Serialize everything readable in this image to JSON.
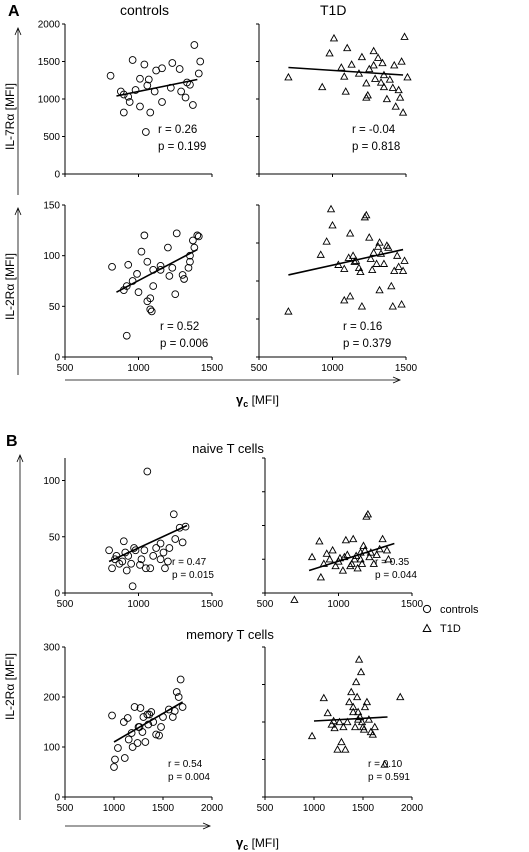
{
  "figure": {
    "panel_a_letter": "A",
    "panel_b_letter": "B",
    "col_controls": "controls",
    "col_t1d": "T1D",
    "gamma_symbol": "γ",
    "gamma_sub": "c",
    "gamma_unit": " [MFI]",
    "il7_label": "IL-7Rα [MFI]",
    "il2_label": "IL-2Rα [MFI]",
    "naive_title": "naive T cells",
    "memory_title": "memory T cells",
    "legend_controls": "controls",
    "legend_t1d": "T1D"
  },
  "chart_data": [
    {
      "id": "A-il7-controls",
      "type": "scatter",
      "marker": "circle",
      "xlim": [
        500,
        1500
      ],
      "ylim": [
        0,
        2000
      ],
      "yticks": [
        "0",
        "500",
        "1000",
        "1500",
        "2000"
      ],
      "stats": {
        "r": "r = 0.26",
        "p": "p =  0.199"
      },
      "fit": [
        [
          850,
          1040
        ],
        [
          1400,
          1260
        ]
      ],
      "points": [
        [
          810,
          1310
        ],
        [
          880,
          1100
        ],
        [
          900,
          1060
        ],
        [
          960,
          1520
        ],
        [
          1040,
          1460
        ],
        [
          1120,
          1380
        ],
        [
          940,
          960
        ],
        [
          900,
          820
        ],
        [
          930,
          1030
        ],
        [
          1010,
          900
        ],
        [
          1060,
          1180
        ],
        [
          1160,
          1410
        ],
        [
          1230,
          1480
        ],
        [
          1280,
          1400
        ],
        [
          1330,
          1220
        ],
        [
          1320,
          1020
        ],
        [
          1350,
          1190
        ],
        [
          1370,
          920
        ],
        [
          1380,
          1720
        ],
        [
          1410,
          1340
        ],
        [
          1420,
          1500
        ],
        [
          1010,
          1270
        ],
        [
          980,
          1120
        ],
        [
          1070,
          1260
        ],
        [
          1220,
          1150
        ],
        [
          1080,
          820
        ],
        [
          1160,
          960
        ],
        [
          1290,
          1100
        ],
        [
          1050,
          560
        ],
        [
          1110,
          1100
        ]
      ]
    },
    {
      "id": "A-il7-t1d",
      "type": "scatter",
      "marker": "triangle",
      "xlim": [
        500,
        1500
      ],
      "ylim": [
        0,
        2000
      ],
      "stats": {
        "r": "r = -0.04",
        "p": "p =  0.818"
      },
      "fit": [
        [
          700,
          1420
        ],
        [
          1480,
          1320
        ]
      ],
      "points": [
        [
          700,
          1290
        ],
        [
          930,
          1160
        ],
        [
          980,
          1610
        ],
        [
          1010,
          1810
        ],
        [
          1100,
          1680
        ],
        [
          1060,
          1420
        ],
        [
          1080,
          1300
        ],
        [
          1090,
          1100
        ],
        [
          1180,
          1340
        ],
        [
          1230,
          1210
        ],
        [
          1230,
          1020
        ],
        [
          1240,
          1050
        ],
        [
          1250,
          1400
        ],
        [
          1280,
          1640
        ],
        [
          1280,
          1450
        ],
        [
          1290,
          1270
        ],
        [
          1310,
          1550
        ],
        [
          1330,
          1220
        ],
        [
          1340,
          1480
        ],
        [
          1350,
          1320
        ],
        [
          1370,
          1000
        ],
        [
          1390,
          1260
        ],
        [
          1410,
          1150
        ],
        [
          1420,
          1450
        ],
        [
          1430,
          900
        ],
        [
          1450,
          1120
        ],
        [
          1460,
          1020
        ],
        [
          1470,
          1500
        ],
        [
          1480,
          820
        ],
        [
          1490,
          1830
        ],
        [
          1510,
          1290
        ],
        [
          1350,
          1160
        ],
        [
          1200,
          1560
        ],
        [
          1130,
          1460
        ]
      ]
    },
    {
      "id": "A-il2-controls",
      "type": "scatter",
      "marker": "circle",
      "xlim": [
        500,
        1500
      ],
      "ylim": [
        0,
        150
      ],
      "yticks": [
        "0",
        "50",
        "100",
        "150"
      ],
      "xticks": [
        "500",
        "1000",
        "1500"
      ],
      "stats": {
        "r": "r = 0.52",
        "p": "p =  0.006"
      },
      "fit": [
        [
          850,
          64
        ],
        [
          1400,
          106
        ]
      ],
      "points": [
        [
          820,
          89
        ],
        [
          900,
          66
        ],
        [
          920,
          70
        ],
        [
          930,
          91
        ],
        [
          920,
          21
        ],
        [
          960,
          75
        ],
        [
          990,
          82
        ],
        [
          1020,
          104
        ],
        [
          1040,
          120
        ],
        [
          1060,
          94
        ],
        [
          1000,
          64
        ],
        [
          1060,
          55
        ],
        [
          1080,
          47
        ],
        [
          1080,
          58
        ],
        [
          1100,
          70
        ],
        [
          1100,
          86
        ],
        [
          1150,
          86
        ],
        [
          1150,
          90
        ],
        [
          1200,
          108
        ],
        [
          1250,
          62
        ],
        [
          1230,
          88
        ],
        [
          1260,
          122
        ],
        [
          1300,
          81
        ],
        [
          1310,
          77
        ],
        [
          1340,
          88
        ],
        [
          1350,
          94
        ],
        [
          1350,
          100
        ],
        [
          1370,
          115
        ],
        [
          1380,
          108
        ],
        [
          1410,
          119
        ],
        [
          1400,
          120
        ],
        [
          1210,
          80
        ],
        [
          1090,
          45
        ]
      ]
    },
    {
      "id": "A-il2-t1d",
      "type": "scatter",
      "marker": "triangle",
      "xlim": [
        500,
        1500
      ],
      "ylim": [
        0,
        150
      ],
      "xticks": [
        "500",
        "1000",
        "1500"
      ],
      "stats": {
        "r": "r = 0.16",
        "p": "p =  0.379"
      },
      "fit": [
        [
          700,
          81
        ],
        [
          1480,
          106
        ]
      ],
      "points": [
        [
          700,
          45
        ],
        [
          920,
          101
        ],
        [
          960,
          114
        ],
        [
          990,
          146
        ],
        [
          1000,
          130
        ],
        [
          1040,
          91
        ],
        [
          1080,
          87
        ],
        [
          1080,
          56
        ],
        [
          1110,
          98
        ],
        [
          1120,
          122
        ],
        [
          1120,
          60
        ],
        [
          1140,
          100
        ],
        [
          1150,
          94
        ],
        [
          1160,
          95
        ],
        [
          1190,
          84
        ],
        [
          1200,
          50
        ],
        [
          1220,
          138
        ],
        [
          1230,
          140
        ],
        [
          1250,
          118
        ],
        [
          1260,
          97
        ],
        [
          1270,
          86
        ],
        [
          1280,
          103
        ],
        [
          1300,
          92
        ],
        [
          1310,
          109
        ],
        [
          1320,
          113
        ],
        [
          1320,
          66
        ],
        [
          1330,
          102
        ],
        [
          1350,
          92
        ],
        [
          1370,
          110
        ],
        [
          1380,
          108
        ],
        [
          1400,
          70
        ],
        [
          1420,
          85
        ],
        [
          1440,
          100
        ],
        [
          1450,
          89
        ],
        [
          1470,
          52
        ],
        [
          1480,
          85
        ],
        [
          1490,
          95
        ],
        [
          1410,
          50
        ],
        [
          1180,
          88
        ]
      ]
    },
    {
      "id": "B-naive-controls",
      "type": "scatter",
      "marker": "circle",
      "xlim": [
        500,
        1500
      ],
      "ylim": [
        0,
        120
      ],
      "yticks": [
        "0",
        "50",
        "100"
      ],
      "xticks": [
        "500",
        "1000",
        "1500"
      ],
      "stats": {
        "r": "r = 0.47",
        "p": "p =  0.015"
      },
      "fit": [
        [
          800,
          28
        ],
        [
          1330,
          60
        ]
      ],
      "points": [
        [
          800,
          38
        ],
        [
          820,
          22
        ],
        [
          840,
          30
        ],
        [
          850,
          33
        ],
        [
          870,
          26
        ],
        [
          890,
          28
        ],
        [
          900,
          46
        ],
        [
          910,
          36
        ],
        [
          920,
          20
        ],
        [
          930,
          33
        ],
        [
          950,
          26
        ],
        [
          960,
          6
        ],
        [
          970,
          40
        ],
        [
          980,
          38
        ],
        [
          1010,
          25
        ],
        [
          1020,
          30
        ],
        [
          1040,
          38
        ],
        [
          1050,
          22
        ],
        [
          1060,
          108
        ],
        [
          1080,
          22
        ],
        [
          1100,
          33
        ],
        [
          1120,
          40
        ],
        [
          1150,
          44
        ],
        [
          1170,
          36
        ],
        [
          1180,
          22
        ],
        [
          1200,
          28
        ],
        [
          1210,
          40
        ],
        [
          1240,
          70
        ],
        [
          1250,
          48
        ],
        [
          1280,
          58
        ],
        [
          1320,
          59
        ],
        [
          1300,
          45
        ],
        [
          1150,
          30
        ]
      ]
    },
    {
      "id": "B-naive-t1d",
      "type": "scatter",
      "marker": "triangle",
      "xlim": [
        500,
        1500
      ],
      "ylim": [
        0,
        120
      ],
      "xticks": [
        "500",
        "1000",
        "1500"
      ],
      "stats": {
        "r": "r = 0.35",
        "p": "p =  0.044"
      },
      "fit": [
        [
          800,
          20
        ],
        [
          1380,
          44
        ]
      ],
      "points": [
        [
          700,
          -6
        ],
        [
          820,
          32
        ],
        [
          870,
          46
        ],
        [
          880,
          14
        ],
        [
          900,
          26
        ],
        [
          920,
          35
        ],
        [
          940,
          30
        ],
        [
          960,
          38
        ],
        [
          980,
          24
        ],
        [
          1000,
          28
        ],
        [
          1010,
          31
        ],
        [
          1030,
          20
        ],
        [
          1040,
          32
        ],
        [
          1050,
          47
        ],
        [
          1060,
          34
        ],
        [
          1080,
          24
        ],
        [
          1090,
          26
        ],
        [
          1100,
          48
        ],
        [
          1110,
          30
        ],
        [
          1120,
          33
        ],
        [
          1130,
          22
        ],
        [
          1150,
          36
        ],
        [
          1160,
          26
        ],
        [
          1170,
          42
        ],
        [
          1180,
          38
        ],
        [
          1190,
          68
        ],
        [
          1200,
          70
        ],
        [
          1210,
          32
        ],
        [
          1220,
          36
        ],
        [
          1240,
          26
        ],
        [
          1260,
          34
        ],
        [
          1280,
          39
        ],
        [
          1300,
          48
        ],
        [
          1330,
          38
        ],
        [
          1340,
          30
        ],
        [
          1150,
          30
        ]
      ]
    },
    {
      "id": "B-memory-controls",
      "type": "scatter",
      "marker": "circle",
      "xlim": [
        500,
        2000
      ],
      "ylim": [
        0,
        300
      ],
      "yticks": [
        "0",
        "100",
        "200",
        "300"
      ],
      "xticks": [
        "500",
        "1000",
        "1500",
        "2000"
      ],
      "stats": {
        "r": "r = 0.54",
        "p": "p =  0.004"
      },
      "fit": [
        [
          1000,
          110
        ],
        [
          1700,
          190
        ]
      ],
      "points": [
        [
          980,
          163
        ],
        [
          1000,
          60
        ],
        [
          1010,
          75
        ],
        [
          1040,
          98
        ],
        [
          1100,
          150
        ],
        [
          1110,
          78
        ],
        [
          1140,
          158
        ],
        [
          1150,
          115
        ],
        [
          1180,
          128
        ],
        [
          1190,
          100
        ],
        [
          1210,
          180
        ],
        [
          1240,
          108
        ],
        [
          1250,
          140
        ],
        [
          1260,
          140
        ],
        [
          1270,
          178
        ],
        [
          1290,
          130
        ],
        [
          1300,
          160
        ],
        [
          1320,
          110
        ],
        [
          1340,
          165
        ],
        [
          1360,
          165
        ],
        [
          1380,
          170
        ],
        [
          1400,
          150
        ],
        [
          1430,
          125
        ],
        [
          1460,
          123
        ],
        [
          1480,
          140
        ],
        [
          1500,
          160
        ],
        [
          1560,
          175
        ],
        [
          1600,
          160
        ],
        [
          1620,
          172
        ],
        [
          1640,
          210
        ],
        [
          1660,
          200
        ],
        [
          1680,
          235
        ],
        [
          1700,
          180
        ],
        [
          1350,
          145
        ]
      ]
    },
    {
      "id": "B-memory-t1d",
      "type": "scatter",
      "marker": "triangle",
      "xlim": [
        500,
        2000
      ],
      "ylim": [
        0,
        300
      ],
      "xticks": [
        "500",
        "1000",
        "1500",
        "2000"
      ],
      "stats": {
        "r": "r = 0.10",
        "p": "p =  0.591"
      },
      "fit": [
        [
          1000,
          152
        ],
        [
          1750,
          160
        ]
      ],
      "points": [
        [
          980,
          122
        ],
        [
          1100,
          198
        ],
        [
          1140,
          168
        ],
        [
          1180,
          145
        ],
        [
          1200,
          152
        ],
        [
          1210,
          138
        ],
        [
          1240,
          95
        ],
        [
          1260,
          150
        ],
        [
          1280,
          110
        ],
        [
          1300,
          140
        ],
        [
          1320,
          95
        ],
        [
          1340,
          150
        ],
        [
          1360,
          190
        ],
        [
          1380,
          210
        ],
        [
          1400,
          180
        ],
        [
          1400,
          170
        ],
        [
          1420,
          140
        ],
        [
          1430,
          230
        ],
        [
          1440,
          200
        ],
        [
          1450,
          170
        ],
        [
          1460,
          275
        ],
        [
          1470,
          160
        ],
        [
          1480,
          250
        ],
        [
          1490,
          150
        ],
        [
          1500,
          140
        ],
        [
          1510,
          135
        ],
        [
          1520,
          180
        ],
        [
          1540,
          190
        ],
        [
          1560,
          155
        ],
        [
          1580,
          130
        ],
        [
          1600,
          125
        ],
        [
          1620,
          140
        ],
        [
          1720,
          65
        ],
        [
          1880,
          200
        ],
        [
          1450,
          155
        ]
      ]
    }
  ]
}
